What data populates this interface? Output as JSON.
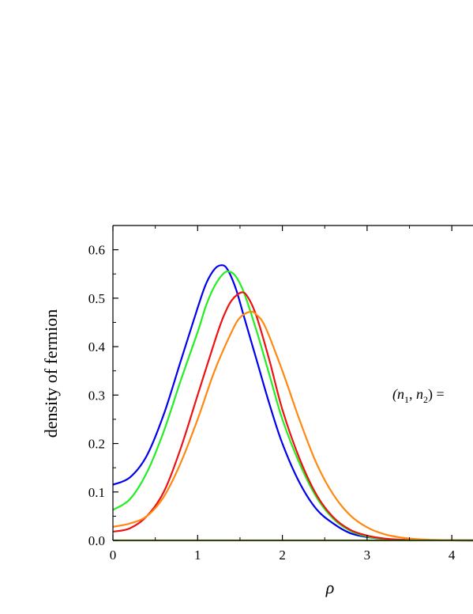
{
  "chart_data": {
    "type": "line",
    "xlabel": "ρ",
    "ylabel": "density of fermion",
    "xlim": [
      0,
      4.25
    ],
    "ylim": [
      0,
      0.65
    ],
    "x_ticks": [
      "0",
      "1",
      "2",
      "3",
      "4"
    ],
    "y_ticks": [
      "0.0",
      "0.1",
      "0.2",
      "0.3",
      "0.4",
      "0.5",
      "0.6"
    ],
    "annotation": {
      "text": "(n1, n2) =",
      "sym1": "n",
      "sub1": "1",
      "sym2": "n",
      "sub2": "2",
      "suffix": ") ="
    },
    "series": [
      {
        "color": "#0000ee",
        "x": [
          0,
          0.2,
          0.4,
          0.6,
          0.8,
          1.0,
          1.1,
          1.2,
          1.28,
          1.35,
          1.45,
          1.55,
          1.7,
          1.85,
          2.0,
          2.2,
          2.4,
          2.6,
          2.8,
          3.0,
          3.2,
          3.4,
          3.6,
          4.0,
          4.25
        ],
        "y": [
          0.115,
          0.13,
          0.175,
          0.26,
          0.37,
          0.48,
          0.53,
          0.56,
          0.568,
          0.56,
          0.52,
          0.46,
          0.37,
          0.28,
          0.2,
          0.12,
          0.065,
          0.035,
          0.015,
          0.007,
          0.003,
          0.001,
          0.0005,
          0.0001,
          0.0
        ]
      },
      {
        "color": "#22ee22",
        "x": [
          0,
          0.2,
          0.4,
          0.6,
          0.8,
          1.0,
          1.1,
          1.2,
          1.3,
          1.37,
          1.45,
          1.55,
          1.7,
          1.85,
          2.0,
          2.2,
          2.4,
          2.6,
          2.8,
          3.0,
          3.2,
          3.4,
          3.6,
          4.0,
          4.25
        ],
        "y": [
          0.063,
          0.085,
          0.14,
          0.225,
          0.33,
          0.43,
          0.485,
          0.525,
          0.55,
          0.555,
          0.545,
          0.51,
          0.43,
          0.34,
          0.25,
          0.16,
          0.09,
          0.045,
          0.02,
          0.008,
          0.003,
          0.0012,
          0.0005,
          0.0001,
          0.0
        ]
      },
      {
        "color": "#ee1111",
        "x": [
          0,
          0.2,
          0.4,
          0.6,
          0.8,
          1.0,
          1.2,
          1.3,
          1.4,
          1.52,
          1.6,
          1.7,
          1.85,
          2.0,
          2.2,
          2.4,
          2.6,
          2.8,
          3.0,
          3.2,
          3.4,
          3.6,
          3.8,
          4.0,
          4.25
        ],
        "y": [
          0.018,
          0.025,
          0.05,
          0.1,
          0.19,
          0.3,
          0.41,
          0.46,
          0.495,
          0.512,
          0.5,
          0.46,
          0.37,
          0.27,
          0.17,
          0.095,
          0.048,
          0.022,
          0.01,
          0.004,
          0.0015,
          0.0006,
          0.0002,
          0.0001,
          0.0
        ]
      },
      {
        "color": "#ff8811",
        "x": [
          0,
          0.2,
          0.4,
          0.6,
          0.8,
          1.0,
          1.2,
          1.4,
          1.5,
          1.62,
          1.7,
          1.8,
          2.0,
          2.2,
          2.4,
          2.6,
          2.8,
          3.0,
          3.2,
          3.4,
          3.6,
          3.8,
          4.0,
          4.25
        ],
        "y": [
          0.028,
          0.035,
          0.05,
          0.09,
          0.16,
          0.25,
          0.35,
          0.43,
          0.46,
          0.472,
          0.465,
          0.44,
          0.35,
          0.25,
          0.16,
          0.095,
          0.052,
          0.027,
          0.013,
          0.006,
          0.0025,
          0.001,
          0.0003,
          0.0
        ]
      },
      {
        "color": "#88aa33",
        "x": [
          0,
          4.25
        ],
        "y": [
          0.0,
          0.0
        ]
      }
    ]
  }
}
